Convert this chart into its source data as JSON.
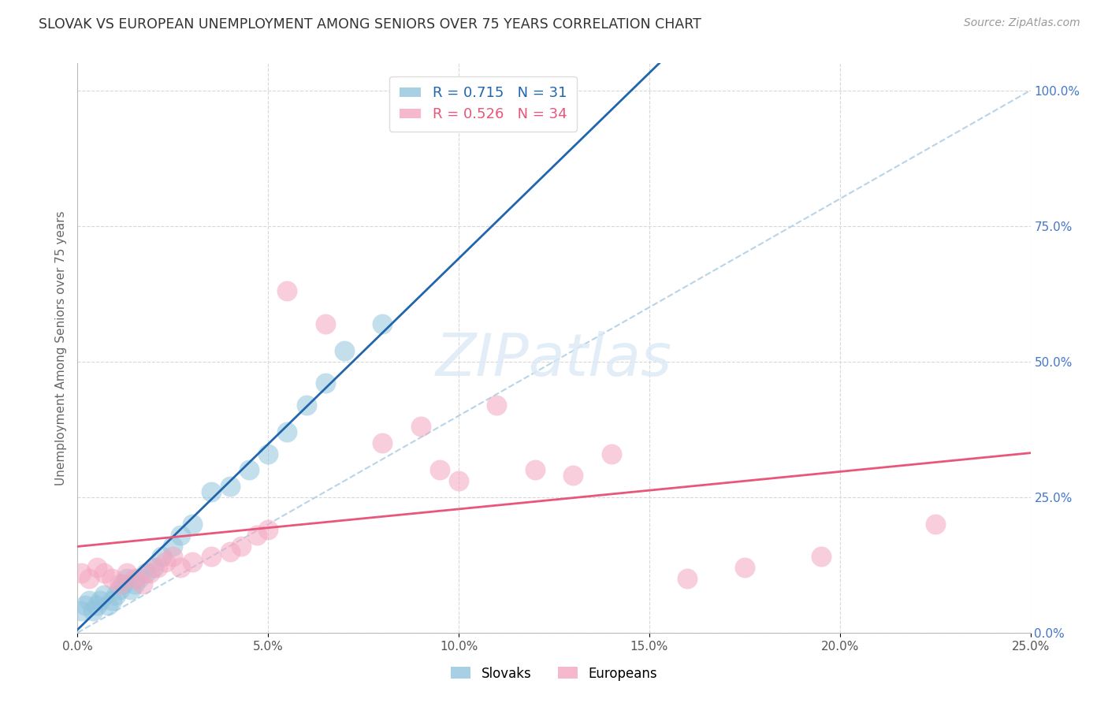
{
  "title": "SLOVAK VS EUROPEAN UNEMPLOYMENT AMONG SENIORS OVER 75 YEARS CORRELATION CHART",
  "source": "Source: ZipAtlas.com",
  "ylabel": "Unemployment Among Seniors over 75 years",
  "right_ytick_labels": [
    "0.0%",
    "25.0%",
    "50.0%",
    "75.0%",
    "100.0%"
  ],
  "right_ytick_values": [
    0.0,
    0.25,
    0.5,
    0.75,
    1.0
  ],
  "bottom_xtick_labels": [
    "0.0%",
    "5.0%",
    "10.0%",
    "15.0%",
    "20.0%",
    "25.0%"
  ],
  "bottom_xtick_values": [
    0.0,
    0.05,
    0.1,
    0.15,
    0.2,
    0.25
  ],
  "xlim": [
    0.0,
    0.25
  ],
  "ylim": [
    0.0,
    1.05
  ],
  "legend_title_blue": "Slovaks",
  "legend_title_pink": "Europeans",
  "blue_color": "#92c5de",
  "pink_color": "#f4a6c0",
  "blue_line_color": "#2166ac",
  "pink_line_color": "#e8567a",
  "dashed_line_color": "#b8d4e8",
  "watermark_text": "ZIPatlas",
  "slovaks_x": [
    0.001,
    0.002,
    0.003,
    0.004,
    0.005,
    0.006,
    0.007,
    0.008,
    0.009,
    0.01,
    0.011,
    0.012,
    0.013,
    0.014,
    0.015,
    0.016,
    0.018,
    0.02,
    0.022,
    0.025,
    0.027,
    0.03,
    0.035,
    0.04,
    0.045,
    0.05,
    0.055,
    0.06,
    0.065,
    0.07,
    0.08
  ],
  "slovaks_y": [
    0.04,
    0.05,
    0.06,
    0.04,
    0.05,
    0.06,
    0.07,
    0.05,
    0.06,
    0.07,
    0.08,
    0.09,
    0.1,
    0.08,
    0.09,
    0.1,
    0.11,
    0.12,
    0.14,
    0.16,
    0.18,
    0.2,
    0.26,
    0.27,
    0.3,
    0.33,
    0.37,
    0.42,
    0.46,
    0.52,
    0.57
  ],
  "europeans_x": [
    0.001,
    0.003,
    0.005,
    0.007,
    0.009,
    0.011,
    0.013,
    0.015,
    0.017,
    0.019,
    0.021,
    0.023,
    0.025,
    0.027,
    0.03,
    0.035,
    0.04,
    0.043,
    0.047,
    0.05,
    0.055,
    0.065,
    0.08,
    0.09,
    0.095,
    0.1,
    0.11,
    0.12,
    0.13,
    0.14,
    0.16,
    0.175,
    0.195,
    0.225
  ],
  "europeans_y": [
    0.11,
    0.1,
    0.12,
    0.11,
    0.1,
    0.09,
    0.11,
    0.1,
    0.09,
    0.11,
    0.12,
    0.13,
    0.14,
    0.12,
    0.13,
    0.14,
    0.15,
    0.16,
    0.18,
    0.19,
    0.63,
    0.57,
    0.35,
    0.38,
    0.3,
    0.28,
    0.42,
    0.3,
    0.29,
    0.33,
    0.1,
    0.12,
    0.14,
    0.2
  ],
  "background_color": "#ffffff",
  "grid_color": "#d8d8d8"
}
